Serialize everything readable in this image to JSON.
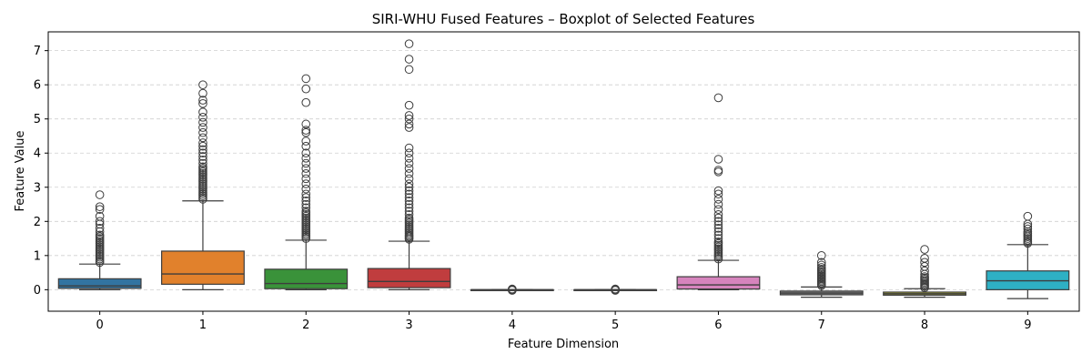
{
  "chart_data": {
    "type": "box",
    "title": "SIRI-WHU Fused Features – Boxplot of Selected Features",
    "xlabel": "Feature Dimension",
    "ylabel": "Feature Value",
    "categories": [
      "0",
      "1",
      "2",
      "3",
      "4",
      "5",
      "6",
      "7",
      "8",
      "9"
    ],
    "y_ticks": [
      0,
      1,
      2,
      3,
      4,
      5,
      6,
      7
    ],
    "ylim": [
      -0.63,
      7.55
    ],
    "grid": "y-dashed",
    "colors": [
      "#3274a1",
      "#e1812c",
      "#3a923a",
      "#c03d3e",
      "#9372b2",
      "#845b53",
      "#d684bd",
      "#7f7f7f",
      "#a9aa35",
      "#2eb0c4"
    ],
    "boxes": [
      {
        "category": "0",
        "whisker_low": 0.0,
        "q1": 0.04,
        "median": 0.11,
        "q3": 0.32,
        "whisker_high": 0.75,
        "outliers": [
          0.8,
          0.85,
          0.9,
          0.95,
          1.0,
          1.05,
          1.1,
          1.15,
          1.2,
          1.25,
          1.3,
          1.35,
          1.4,
          1.45,
          1.5,
          1.55,
          1.6,
          1.7,
          1.8,
          1.92,
          2.0,
          2.15,
          2.35,
          2.43,
          2.78
        ]
      },
      {
        "category": "1",
        "whisker_low": 0.0,
        "q1": 0.16,
        "median": 0.46,
        "q3": 1.13,
        "whisker_high": 2.6,
        "outliers": [
          2.65,
          2.7,
          2.75,
          2.8,
          2.85,
          2.9,
          2.95,
          3.0,
          3.05,
          3.1,
          3.15,
          3.2,
          3.25,
          3.3,
          3.35,
          3.4,
          3.45,
          3.5,
          3.55,
          3.6,
          3.7,
          3.8,
          3.9,
          4.0,
          4.1,
          4.2,
          4.3,
          4.45,
          4.6,
          4.75,
          4.9,
          5.05,
          5.2,
          5.45,
          5.55,
          5.75,
          6.0
        ]
      },
      {
        "category": "2",
        "whisker_low": 0.0,
        "q1": 0.03,
        "median": 0.18,
        "q3": 0.6,
        "whisker_high": 1.45,
        "outliers": [
          1.5,
          1.55,
          1.6,
          1.65,
          1.7,
          1.75,
          1.8,
          1.85,
          1.9,
          1.95,
          2.0,
          2.05,
          2.1,
          2.15,
          2.2,
          2.25,
          2.3,
          2.4,
          2.5,
          2.6,
          2.7,
          2.8,
          2.95,
          3.1,
          3.25,
          3.4,
          3.55,
          3.7,
          3.85,
          4.0,
          4.2,
          4.35,
          4.6,
          4.67,
          4.85,
          5.48,
          5.88,
          6.18
        ]
      },
      {
        "category": "3",
        "whisker_low": 0.0,
        "q1": 0.06,
        "median": 0.24,
        "q3": 0.62,
        "whisker_high": 1.42,
        "outliers": [
          1.48,
          1.52,
          1.56,
          1.6,
          1.65,
          1.7,
          1.75,
          1.8,
          1.85,
          1.9,
          1.95,
          2.0,
          2.05,
          2.1,
          2.2,
          2.3,
          2.4,
          2.5,
          2.6,
          2.7,
          2.8,
          2.9,
          3.0,
          3.1,
          3.25,
          3.4,
          3.55,
          3.7,
          3.85,
          4.0,
          4.15,
          4.75,
          4.85,
          5.0,
          5.1,
          5.4,
          6.45,
          6.75,
          7.2
        ]
      },
      {
        "category": "4",
        "whisker_low": 0.0,
        "q1": 0.0,
        "median": 0.0,
        "q3": 0.0,
        "whisker_high": 0.0,
        "outliers": [
          -0.02,
          0.0,
          0.02
        ]
      },
      {
        "category": "5",
        "whisker_low": 0.0,
        "q1": 0.0,
        "median": 0.0,
        "q3": 0.0,
        "whisker_high": 0.0,
        "outliers": [
          -0.02,
          0.0,
          0.02
        ]
      },
      {
        "category": "6",
        "whisker_low": 0.0,
        "q1": 0.02,
        "median": 0.14,
        "q3": 0.38,
        "whisker_high": 0.86,
        "outliers": [
          0.9,
          0.95,
          1.0,
          1.05,
          1.1,
          1.15,
          1.2,
          1.25,
          1.3,
          1.35,
          1.4,
          1.5,
          1.6,
          1.7,
          1.8,
          1.9,
          2.0,
          2.1,
          2.2,
          2.35,
          2.5,
          2.65,
          2.8,
          2.9,
          3.45,
          3.5,
          3.82,
          5.62
        ]
      },
      {
        "category": "7",
        "whisker_low": -0.22,
        "q1": -0.15,
        "median": -0.1,
        "q3": -0.04,
        "whisker_high": 0.08,
        "outliers": [
          0.12,
          0.16,
          0.2,
          0.24,
          0.28,
          0.32,
          0.36,
          0.4,
          0.44,
          0.48,
          0.52,
          0.56,
          0.6,
          0.65,
          0.72,
          0.8,
          1.0
        ]
      },
      {
        "category": "8",
        "whisker_low": -0.22,
        "q1": -0.16,
        "median": -0.12,
        "q3": -0.07,
        "whisker_high": 0.03,
        "outliers": [
          0.06,
          0.1,
          0.14,
          0.18,
          0.22,
          0.26,
          0.3,
          0.34,
          0.38,
          0.45,
          0.55,
          0.68,
          0.8,
          0.92,
          1.18
        ]
      },
      {
        "category": "9",
        "whisker_low": -0.26,
        "q1": 0.0,
        "median": 0.26,
        "q3": 0.55,
        "whisker_high": 1.32,
        "outliers": [
          1.36,
          1.4,
          1.45,
          1.5,
          1.55,
          1.6,
          1.65,
          1.7,
          1.78,
          1.85,
          1.92,
          2.15
        ]
      }
    ]
  }
}
